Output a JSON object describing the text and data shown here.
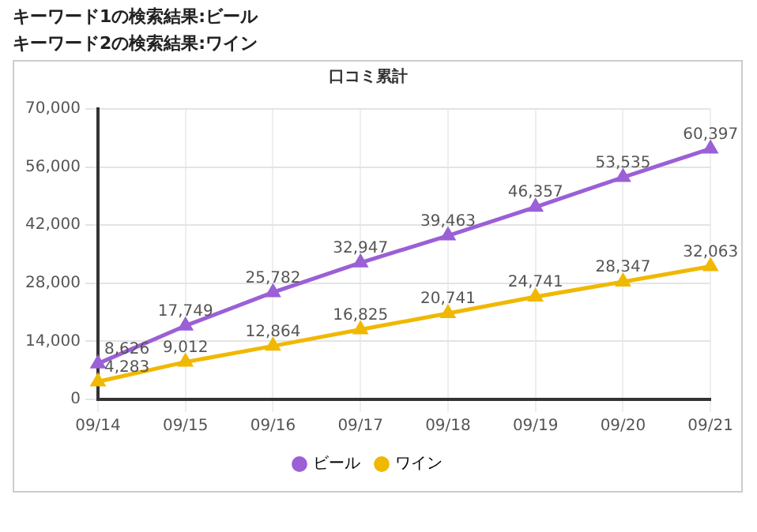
{
  "chart_data": {
    "type": "line",
    "title": "口コミ累計",
    "annotations": [
      "キーワード1の検索結果:ビール",
      "キーワード2の検索結果:ワイン"
    ],
    "categories": [
      "09/14",
      "09/15",
      "09/16",
      "09/17",
      "09/18",
      "09/19",
      "09/20",
      "09/21"
    ],
    "series": [
      {
        "name": "ビール",
        "color": "#9b5fd6",
        "values": [
          8626,
          17749,
          25782,
          32947,
          39463,
          46357,
          53535,
          60397
        ],
        "value_labels": [
          "8,626",
          "17,749",
          "25,782",
          "32,947",
          "39,463",
          "46,357",
          "53,535",
          "60,397"
        ]
      },
      {
        "name": "ワイン",
        "color": "#f0b800",
        "values": [
          4283,
          9012,
          12864,
          16825,
          20741,
          24741,
          28347,
          32063
        ],
        "value_labels": [
          "4,283",
          "9,012",
          "12,864",
          "16,825",
          "20,741",
          "24,741",
          "28,347",
          "32,063"
        ]
      }
    ],
    "ylim": [
      0,
      70000
    ],
    "yticks": [
      0,
      {
        "value": 14000,
        "label": "14,000"
      },
      {
        "value": 28000,
        "label": "28,000"
      },
      {
        "value": 42000,
        "label": "42,000"
      },
      {
        "value": 56000,
        "label": "56,000"
      },
      {
        "value": 70000,
        "label": "70,000"
      }
    ],
    "grid": true,
    "legend": "bottom",
    "marker": "triangle"
  }
}
